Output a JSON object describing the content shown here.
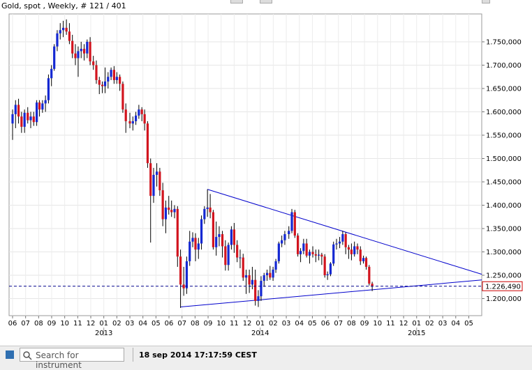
{
  "header": {
    "title": "Gold, spot , Weekly, # 121 / 401"
  },
  "price_badge": "1.226,490",
  "footer": {
    "search_placeholder": "Search for instrument",
    "timestamp": "18 sep 2014 17:17:59 CEST"
  },
  "colors": {
    "up": "#1428d2",
    "down": "#d2141e",
    "trendline": "#0000cc",
    "badge": "#cc0000"
  },
  "chart_data": {
    "type": "candlestick",
    "title": "Gold, spot , Weekly, # 121 / 401",
    "y_axis_side": "right",
    "ylim": [
      1150000,
      1800000
    ],
    "y_ticks": [
      "1.750,000",
      "1.700,000",
      "1.650,000",
      "1.600,000",
      "1.550,000",
      "1.500,000",
      "1.450,000",
      "1.400,000",
      "1.350,000",
      "1.300,000",
      "1.250,000",
      "1.200,000"
    ],
    "y_tick_values": [
      1750000,
      1700000,
      1650000,
      1600000,
      1550000,
      1500000,
      1450000,
      1400000,
      1350000,
      1300000,
      1250000,
      1200000
    ],
    "x_ticks": [
      "06",
      "07",
      "08",
      "09",
      "10",
      "11",
      "12",
      "01",
      "02",
      "03",
      "04",
      "05",
      "06",
      "07",
      "08",
      "09",
      "10",
      "11",
      "12",
      "01",
      "02",
      "03",
      "04",
      "05",
      "06",
      "07",
      "08",
      "09",
      "10",
      "11",
      "12",
      "01",
      "02",
      "03",
      "04",
      "05"
    ],
    "x_tick_months": [
      "2012-06",
      "2012-07",
      "2012-08",
      "2012-09",
      "2012-10",
      "2012-11",
      "2012-12",
      "2013-01",
      "2013-02",
      "2013-03",
      "2013-04",
      "2013-05",
      "2013-06",
      "2013-07",
      "2013-08",
      "2013-09",
      "2013-10",
      "2013-11",
      "2013-12",
      "2014-01",
      "2014-02",
      "2014-03",
      "2014-04",
      "2014-05",
      "2014-06",
      "2014-07",
      "2014-08",
      "2014-09",
      "2014-10",
      "2014-11",
      "2014-12",
      "2015-01",
      "2015-02",
      "2015-03",
      "2015-04",
      "2015-05"
    ],
    "year_labels": [
      {
        "label": "2013",
        "month": "2013-01"
      },
      {
        "label": "2014",
        "month": "2014-01"
      },
      {
        "label": "2015",
        "month": "2015-01"
      }
    ],
    "grid": true,
    "current_price": 1226490,
    "trendlines": [
      {
        "from": [
          "2013-08-30",
          1434000
        ],
        "to": [
          "2015-06-01",
          1252000
        ]
      },
      {
        "from": [
          "2013-06-28",
          1182000
        ],
        "to": [
          "2015-06-01",
          1240000
        ]
      }
    ],
    "candles": [
      {
        "date": "2012-06-01",
        "o": 1575000,
        "h": 1605000,
        "l": 1540000,
        "c": 1595000
      },
      {
        "date": "2012-06-08",
        "o": 1595000,
        "h": 1625000,
        "l": 1565000,
        "c": 1615000
      },
      {
        "date": "2012-06-15",
        "o": 1615000,
        "h": 1628000,
        "l": 1575000,
        "c": 1590000
      },
      {
        "date": "2012-06-22",
        "o": 1590000,
        "h": 1600000,
        "l": 1555000,
        "c": 1568000
      },
      {
        "date": "2012-06-29",
        "o": 1568000,
        "h": 1605000,
        "l": 1555000,
        "c": 1598000
      },
      {
        "date": "2012-07-06",
        "o": 1598000,
        "h": 1610000,
        "l": 1575000,
        "c": 1582000
      },
      {
        "date": "2012-07-13",
        "o": 1582000,
        "h": 1600000,
        "l": 1565000,
        "c": 1590000
      },
      {
        "date": "2012-07-20",
        "o": 1590000,
        "h": 1600000,
        "l": 1570000,
        "c": 1578000
      },
      {
        "date": "2012-07-27",
        "o": 1578000,
        "h": 1625000,
        "l": 1570000,
        "c": 1620000
      },
      {
        "date": "2012-08-03",
        "o": 1620000,
        "h": 1625000,
        "l": 1590000,
        "c": 1605000
      },
      {
        "date": "2012-08-10",
        "o": 1605000,
        "h": 1625000,
        "l": 1598000,
        "c": 1618000
      },
      {
        "date": "2012-08-17",
        "o": 1618000,
        "h": 1635000,
        "l": 1600000,
        "c": 1625000
      },
      {
        "date": "2012-08-24",
        "o": 1625000,
        "h": 1680000,
        "l": 1618000,
        "c": 1672000
      },
      {
        "date": "2012-08-31",
        "o": 1672000,
        "h": 1700000,
        "l": 1655000,
        "c": 1692000
      },
      {
        "date": "2012-09-07",
        "o": 1692000,
        "h": 1745000,
        "l": 1688000,
        "c": 1740000
      },
      {
        "date": "2012-09-14",
        "o": 1740000,
        "h": 1775000,
        "l": 1730000,
        "c": 1768000
      },
      {
        "date": "2012-09-21",
        "o": 1768000,
        "h": 1790000,
        "l": 1755000,
        "c": 1775000
      },
      {
        "date": "2012-09-28",
        "o": 1775000,
        "h": 1795000,
        "l": 1760000,
        "c": 1780000
      },
      {
        "date": "2012-10-05",
        "o": 1780000,
        "h": 1798000,
        "l": 1765000,
        "c": 1772000
      },
      {
        "date": "2012-10-12",
        "o": 1772000,
        "h": 1790000,
        "l": 1745000,
        "c": 1752000
      },
      {
        "date": "2012-10-19",
        "o": 1752000,
        "h": 1765000,
        "l": 1715000,
        "c": 1725000
      },
      {
        "date": "2012-10-26",
        "o": 1725000,
        "h": 1745000,
        "l": 1700000,
        "c": 1715000
      },
      {
        "date": "2012-11-02",
        "o": 1715000,
        "h": 1740000,
        "l": 1675000,
        "c": 1730000
      },
      {
        "date": "2012-11-09",
        "o": 1730000,
        "h": 1750000,
        "l": 1715000,
        "c": 1735000
      },
      {
        "date": "2012-11-16",
        "o": 1735000,
        "h": 1745000,
        "l": 1710000,
        "c": 1725000
      },
      {
        "date": "2012-11-23",
        "o": 1725000,
        "h": 1755000,
        "l": 1715000,
        "c": 1750000
      },
      {
        "date": "2012-11-30",
        "o": 1750000,
        "h": 1760000,
        "l": 1700000,
        "c": 1708000
      },
      {
        "date": "2012-12-07",
        "o": 1708000,
        "h": 1720000,
        "l": 1690000,
        "c": 1700000
      },
      {
        "date": "2012-12-14",
        "o": 1700000,
        "h": 1710000,
        "l": 1660000,
        "c": 1668000
      },
      {
        "date": "2012-12-21",
        "o": 1668000,
        "h": 1675000,
        "l": 1638000,
        "c": 1658000
      },
      {
        "date": "2012-12-28",
        "o": 1658000,
        "h": 1665000,
        "l": 1640000,
        "c": 1655000
      },
      {
        "date": "2013-01-04",
        "o": 1655000,
        "h": 1695000,
        "l": 1640000,
        "c": 1665000
      },
      {
        "date": "2013-01-11",
        "o": 1665000,
        "h": 1685000,
        "l": 1650000,
        "c": 1675000
      },
      {
        "date": "2013-01-18",
        "o": 1675000,
        "h": 1695000,
        "l": 1668000,
        "c": 1690000
      },
      {
        "date": "2013-01-25",
        "o": 1690000,
        "h": 1698000,
        "l": 1660000,
        "c": 1668000
      },
      {
        "date": "2013-02-01",
        "o": 1668000,
        "h": 1685000,
        "l": 1660000,
        "c": 1675000
      },
      {
        "date": "2013-02-08",
        "o": 1675000,
        "h": 1680000,
        "l": 1645000,
        "c": 1660000
      },
      {
        "date": "2013-02-15",
        "o": 1660000,
        "h": 1665000,
        "l": 1598000,
        "c": 1605000
      },
      {
        "date": "2013-02-22",
        "o": 1605000,
        "h": 1618000,
        "l": 1555000,
        "c": 1580000
      },
      {
        "date": "2013-03-01",
        "o": 1580000,
        "h": 1598000,
        "l": 1565000,
        "c": 1575000
      },
      {
        "date": "2013-03-08",
        "o": 1575000,
        "h": 1590000,
        "l": 1560000,
        "c": 1580000
      },
      {
        "date": "2013-03-15",
        "o": 1580000,
        "h": 1600000,
        "l": 1572000,
        "c": 1592000
      },
      {
        "date": "2013-03-22",
        "o": 1592000,
        "h": 1615000,
        "l": 1585000,
        "c": 1605000
      },
      {
        "date": "2013-03-29",
        "o": 1605000,
        "h": 1610000,
        "l": 1580000,
        "c": 1595000
      },
      {
        "date": "2013-04-05",
        "o": 1595000,
        "h": 1605000,
        "l": 1560000,
        "c": 1575000
      },
      {
        "date": "2013-04-12",
        "o": 1575000,
        "h": 1580000,
        "l": 1480000,
        "c": 1490000
      },
      {
        "date": "2013-04-19",
        "o": 1490000,
        "h": 1500000,
        "l": 1320000,
        "c": 1420000
      },
      {
        "date": "2013-04-26",
        "o": 1420000,
        "h": 1480000,
        "l": 1405000,
        "c": 1465000
      },
      {
        "date": "2013-05-03",
        "o": 1465000,
        "h": 1490000,
        "l": 1440000,
        "c": 1472000
      },
      {
        "date": "2013-05-10",
        "o": 1472000,
        "h": 1480000,
        "l": 1420000,
        "c": 1432000
      },
      {
        "date": "2013-05-17",
        "o": 1432000,
        "h": 1448000,
        "l": 1355000,
        "c": 1370000
      },
      {
        "date": "2013-05-24",
        "o": 1370000,
        "h": 1410000,
        "l": 1340000,
        "c": 1395000
      },
      {
        "date": "2013-05-31",
        "o": 1395000,
        "h": 1420000,
        "l": 1380000,
        "c": 1390000
      },
      {
        "date": "2013-06-07",
        "o": 1390000,
        "h": 1410000,
        "l": 1375000,
        "c": 1385000
      },
      {
        "date": "2013-06-14",
        "o": 1385000,
        "h": 1400000,
        "l": 1372000,
        "c": 1392000
      },
      {
        "date": "2013-06-21",
        "o": 1392000,
        "h": 1398000,
        "l": 1268000,
        "c": 1290000
      },
      {
        "date": "2013-06-28",
        "o": 1290000,
        "h": 1305000,
        "l": 1180000,
        "c": 1230000
      },
      {
        "date": "2013-07-05",
        "o": 1230000,
        "h": 1268000,
        "l": 1206000,
        "c": 1222000
      },
      {
        "date": "2013-07-12",
        "o": 1222000,
        "h": 1290000,
        "l": 1210000,
        "c": 1280000
      },
      {
        "date": "2013-07-19",
        "o": 1280000,
        "h": 1345000,
        "l": 1270000,
        "c": 1322000
      },
      {
        "date": "2013-07-26",
        "o": 1322000,
        "h": 1342000,
        "l": 1310000,
        "c": 1330000
      },
      {
        "date": "2013-08-02",
        "o": 1330000,
        "h": 1340000,
        "l": 1280000,
        "c": 1305000
      },
      {
        "date": "2013-08-09",
        "o": 1305000,
        "h": 1330000,
        "l": 1285000,
        "c": 1318000
      },
      {
        "date": "2013-08-16",
        "o": 1318000,
        "h": 1378000,
        "l": 1305000,
        "c": 1370000
      },
      {
        "date": "2013-08-23",
        "o": 1370000,
        "h": 1398000,
        "l": 1360000,
        "c": 1392000
      },
      {
        "date": "2013-08-30",
        "o": 1392000,
        "h": 1434000,
        "l": 1375000,
        "c": 1395000
      },
      {
        "date": "2013-09-06",
        "o": 1395000,
        "h": 1424000,
        "l": 1372000,
        "c": 1385000
      },
      {
        "date": "2013-09-13",
        "o": 1385000,
        "h": 1390000,
        "l": 1305000,
        "c": 1310000
      },
      {
        "date": "2013-09-20",
        "o": 1310000,
        "h": 1365000,
        "l": 1292000,
        "c": 1332000
      },
      {
        "date": "2013-09-27",
        "o": 1332000,
        "h": 1355000,
        "l": 1312000,
        "c": 1338000
      },
      {
        "date": "2013-10-04",
        "o": 1338000,
        "h": 1345000,
        "l": 1288000,
        "c": 1312000
      },
      {
        "date": "2013-10-11",
        "o": 1312000,
        "h": 1325000,
        "l": 1260000,
        "c": 1272000
      },
      {
        "date": "2013-10-18",
        "o": 1272000,
        "h": 1320000,
        "l": 1260000,
        "c": 1315000
      },
      {
        "date": "2013-10-25",
        "o": 1315000,
        "h": 1355000,
        "l": 1305000,
        "c": 1348000
      },
      {
        "date": "2013-11-01",
        "o": 1348000,
        "h": 1362000,
        "l": 1298000,
        "c": 1315000
      },
      {
        "date": "2013-11-08",
        "o": 1315000,
        "h": 1325000,
        "l": 1278000,
        "c": 1288000
      },
      {
        "date": "2013-11-15",
        "o": 1288000,
        "h": 1305000,
        "l": 1265000,
        "c": 1288000
      },
      {
        "date": "2013-11-22",
        "o": 1288000,
        "h": 1296000,
        "l": 1238000,
        "c": 1245000
      },
      {
        "date": "2013-11-29",
        "o": 1245000,
        "h": 1262000,
        "l": 1210000,
        "c": 1250000
      },
      {
        "date": "2013-12-06",
        "o": 1250000,
        "h": 1262000,
        "l": 1212000,
        "c": 1230000
      },
      {
        "date": "2013-12-13",
        "o": 1230000,
        "h": 1268000,
        "l": 1220000,
        "c": 1240000
      },
      {
        "date": "2013-12-20",
        "o": 1240000,
        "h": 1262000,
        "l": 1185000,
        "c": 1195000
      },
      {
        "date": "2013-12-27",
        "o": 1195000,
        "h": 1218000,
        "l": 1182000,
        "c": 1205000
      },
      {
        "date": "2014-01-03",
        "o": 1205000,
        "h": 1248000,
        "l": 1195000,
        "c": 1238000
      },
      {
        "date": "2014-01-10",
        "o": 1238000,
        "h": 1255000,
        "l": 1225000,
        "c": 1250000
      },
      {
        "date": "2014-01-17",
        "o": 1250000,
        "h": 1262000,
        "l": 1238000,
        "c": 1255000
      },
      {
        "date": "2014-01-24",
        "o": 1255000,
        "h": 1270000,
        "l": 1240000,
        "c": 1245000
      },
      {
        "date": "2014-01-31",
        "o": 1245000,
        "h": 1268000,
        "l": 1238000,
        "c": 1262000
      },
      {
        "date": "2014-02-07",
        "o": 1262000,
        "h": 1285000,
        "l": 1255000,
        "c": 1280000
      },
      {
        "date": "2014-02-14",
        "o": 1280000,
        "h": 1322000,
        "l": 1275000,
        "c": 1318000
      },
      {
        "date": "2014-02-21",
        "o": 1318000,
        "h": 1335000,
        "l": 1310000,
        "c": 1325000
      },
      {
        "date": "2014-02-28",
        "o": 1325000,
        "h": 1345000,
        "l": 1315000,
        "c": 1338000
      },
      {
        "date": "2014-03-07",
        "o": 1338000,
        "h": 1355000,
        "l": 1328000,
        "c": 1345000
      },
      {
        "date": "2014-03-14",
        "o": 1345000,
        "h": 1392000,
        "l": 1340000,
        "c": 1385000
      },
      {
        "date": "2014-03-21",
        "o": 1385000,
        "h": 1390000,
        "l": 1330000,
        "c": 1335000
      },
      {
        "date": "2014-03-28",
        "o": 1335000,
        "h": 1340000,
        "l": 1290000,
        "c": 1295000
      },
      {
        "date": "2014-04-04",
        "o": 1295000,
        "h": 1308000,
        "l": 1278000,
        "c": 1302000
      },
      {
        "date": "2014-04-11",
        "o": 1302000,
        "h": 1328000,
        "l": 1295000,
        "c": 1318000
      },
      {
        "date": "2014-04-18",
        "o": 1318000,
        "h": 1328000,
        "l": 1288000,
        "c": 1292000
      },
      {
        "date": "2014-04-25",
        "o": 1292000,
        "h": 1305000,
        "l": 1275000,
        "c": 1300000
      },
      {
        "date": "2014-05-02",
        "o": 1300000,
        "h": 1312000,
        "l": 1288000,
        "c": 1295000
      },
      {
        "date": "2014-05-09",
        "o": 1295000,
        "h": 1305000,
        "l": 1278000,
        "c": 1292000
      },
      {
        "date": "2014-05-16",
        "o": 1292000,
        "h": 1305000,
        "l": 1282000,
        "c": 1294000
      },
      {
        "date": "2014-05-23",
        "o": 1294000,
        "h": 1298000,
        "l": 1272000,
        "c": 1290000
      },
      {
        "date": "2014-05-30",
        "o": 1290000,
        "h": 1295000,
        "l": 1245000,
        "c": 1250000
      },
      {
        "date": "2014-06-06",
        "o": 1250000,
        "h": 1258000,
        "l": 1240000,
        "c": 1252000
      },
      {
        "date": "2014-06-13",
        "o": 1252000,
        "h": 1278000,
        "l": 1248000,
        "c": 1275000
      },
      {
        "date": "2014-06-20",
        "o": 1275000,
        "h": 1322000,
        "l": 1270000,
        "c": 1316000
      },
      {
        "date": "2014-06-27",
        "o": 1316000,
        "h": 1328000,
        "l": 1305000,
        "c": 1318000
      },
      {
        "date": "2014-07-04",
        "o": 1318000,
        "h": 1332000,
        "l": 1308000,
        "c": 1322000
      },
      {
        "date": "2014-07-11",
        "o": 1322000,
        "h": 1345000,
        "l": 1315000,
        "c": 1338000
      },
      {
        "date": "2014-07-18",
        "o": 1338000,
        "h": 1342000,
        "l": 1295000,
        "c": 1310000
      },
      {
        "date": "2014-07-25",
        "o": 1310000,
        "h": 1315000,
        "l": 1285000,
        "c": 1305000
      },
      {
        "date": "2014-08-01",
        "o": 1305000,
        "h": 1318000,
        "l": 1282000,
        "c": 1295000
      },
      {
        "date": "2014-08-08",
        "o": 1295000,
        "h": 1322000,
        "l": 1290000,
        "c": 1312000
      },
      {
        "date": "2014-08-15",
        "o": 1312000,
        "h": 1318000,
        "l": 1295000,
        "c": 1305000
      },
      {
        "date": "2014-08-22",
        "o": 1305000,
        "h": 1312000,
        "l": 1272000,
        "c": 1280000
      },
      {
        "date": "2014-08-29",
        "o": 1280000,
        "h": 1292000,
        "l": 1275000,
        "c": 1287000
      },
      {
        "date": "2014-09-05",
        "o": 1287000,
        "h": 1290000,
        "l": 1262000,
        "c": 1268000
      },
      {
        "date": "2014-09-12",
        "o": 1268000,
        "h": 1272000,
        "l": 1228000,
        "c": 1232000
      },
      {
        "date": "2014-09-19",
        "o": 1232000,
        "h": 1236000,
        "l": 1216000,
        "c": 1226490
      }
    ]
  }
}
